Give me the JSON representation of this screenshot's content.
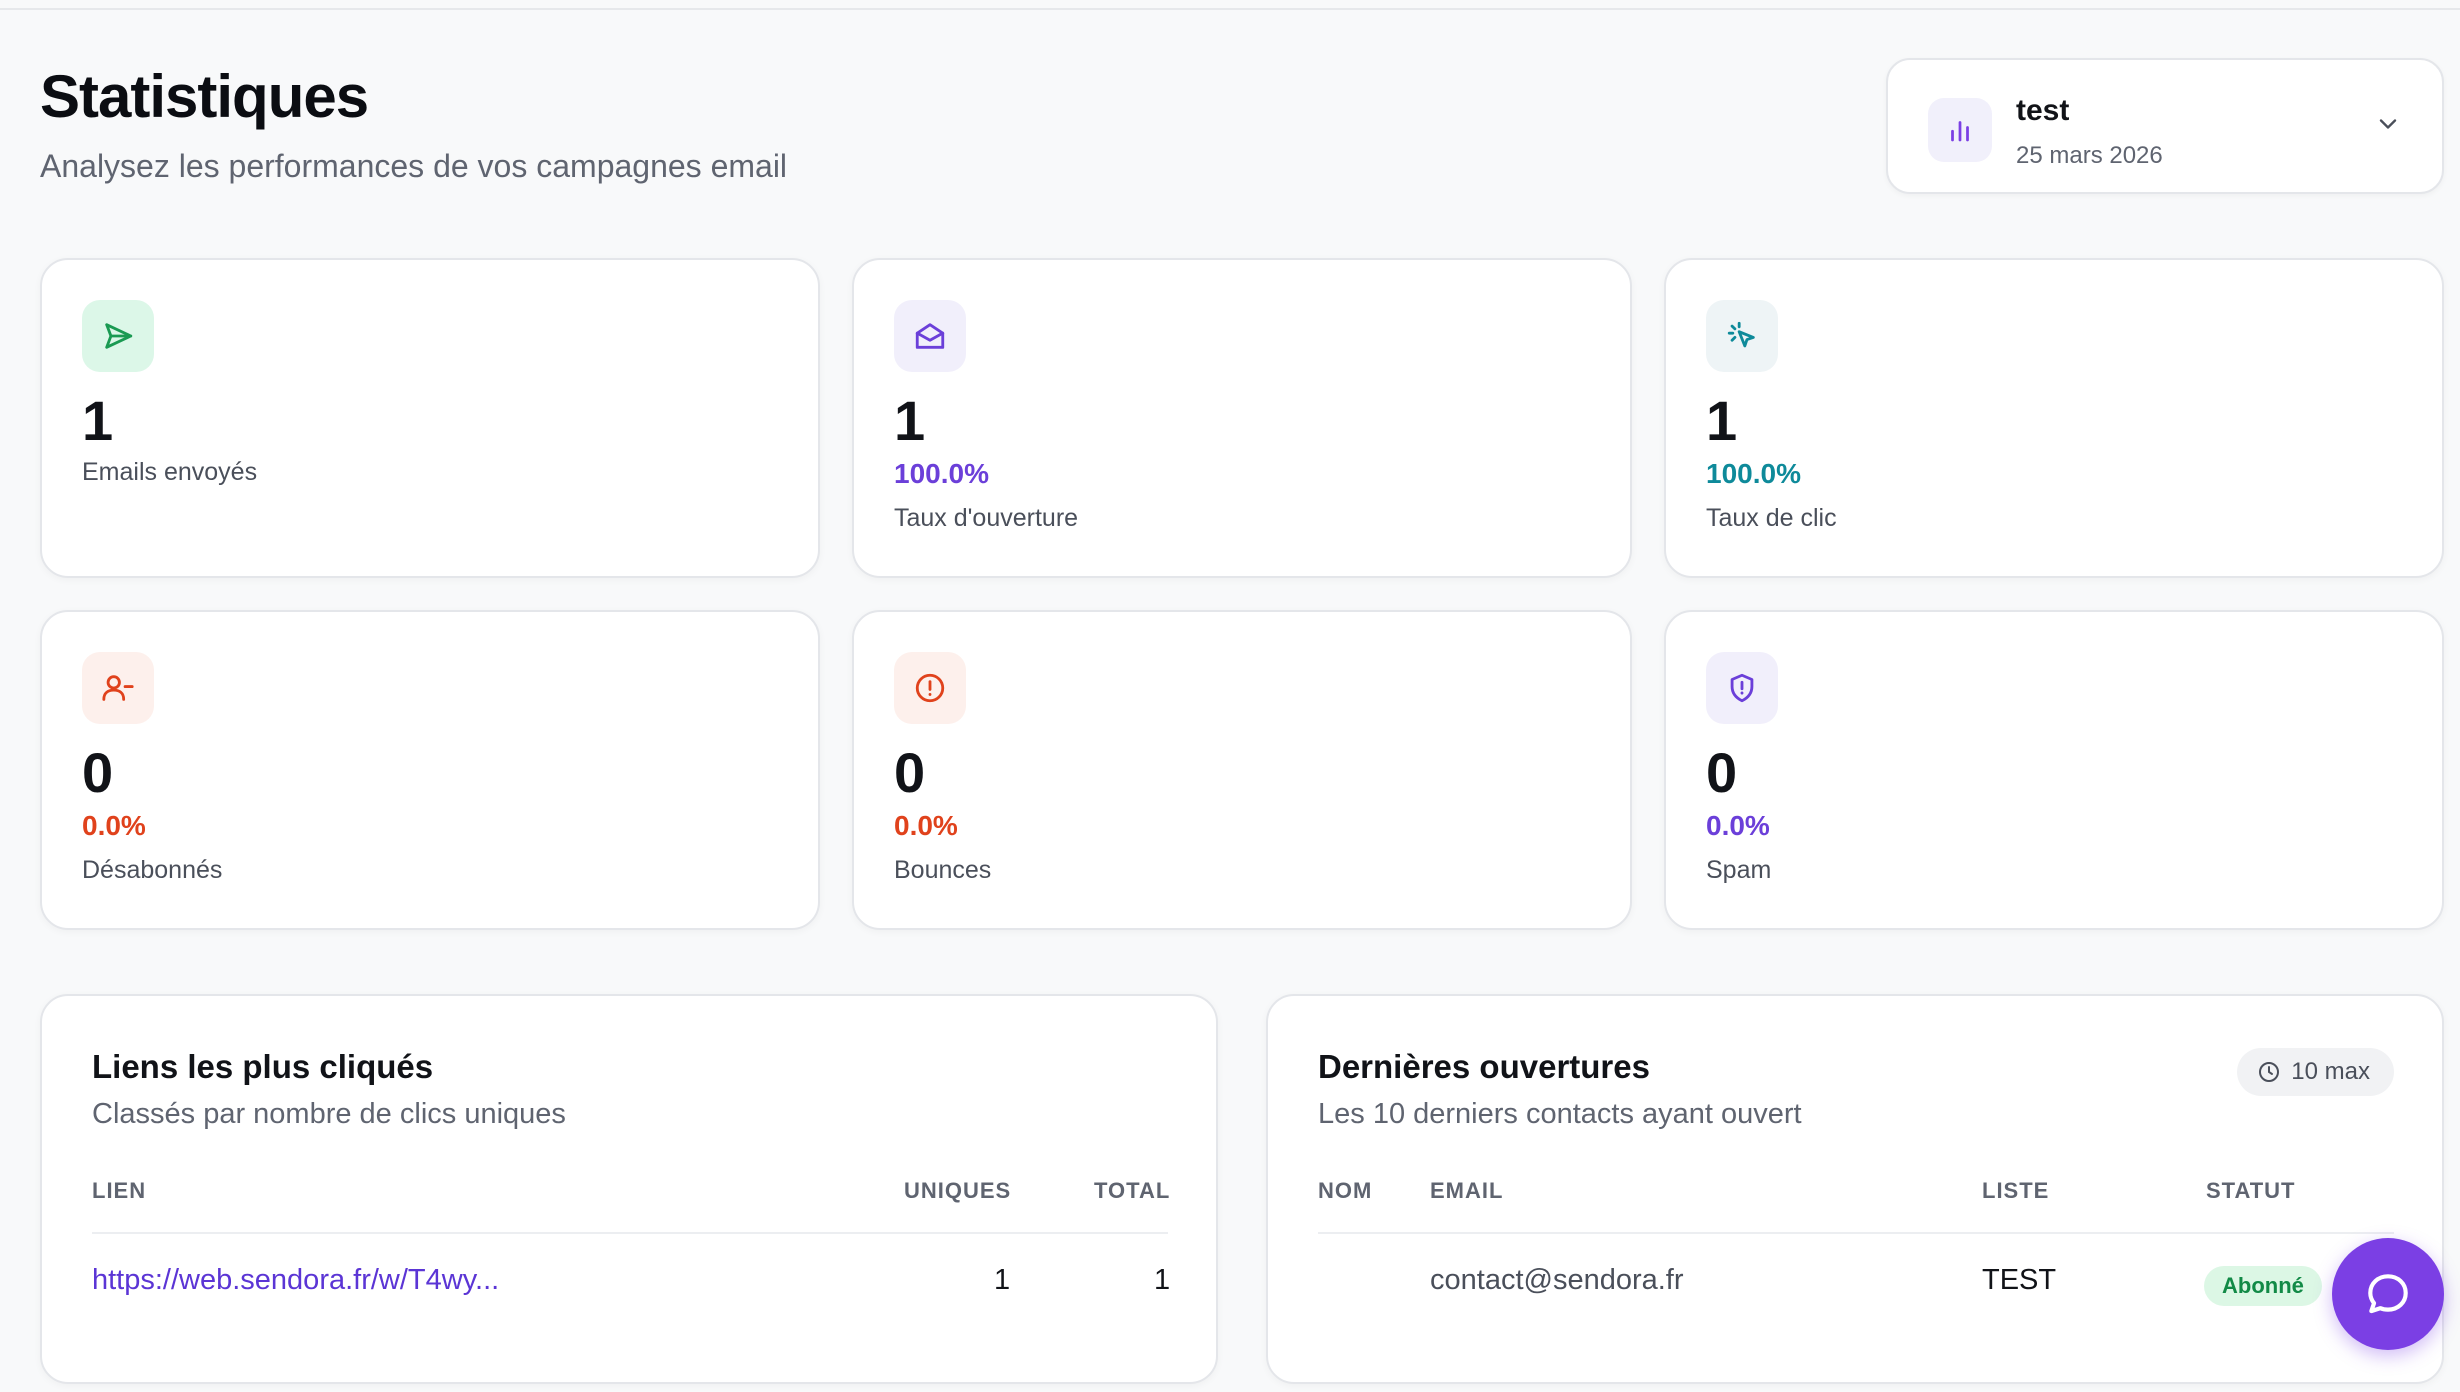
{
  "header": {
    "title": "Statistiques",
    "subtitle": "Analysez les performances de vos campagnes email"
  },
  "campaign_selector": {
    "name": "test",
    "date": "25 mars 2026",
    "icon": "bar-chart-icon"
  },
  "stats": {
    "sent": {
      "value": "1",
      "label": "Emails envoyés",
      "icon": "send-icon",
      "color": "#1a9a52",
      "bg": "#dcf7e8"
    },
    "opens": {
      "value": "1",
      "pct": "100.0%",
      "label": "Taux d'ouverture",
      "icon": "mail-open-icon",
      "color": "#6b3fd9",
      "bg": "#f1effb"
    },
    "clicks": {
      "value": "1",
      "pct": "100.0%",
      "label": "Taux de clic",
      "icon": "cursor-click-icon",
      "color": "#0e8a9a",
      "bg": "#eef4f6"
    },
    "unsubscribes": {
      "value": "0",
      "pct": "0.0%",
      "label": "Désabonnés",
      "icon": "user-minus-icon",
      "color": "#e0421c",
      "bg": "#fdf0ec"
    },
    "bounces": {
      "value": "0",
      "pct": "0.0%",
      "label": "Bounces",
      "icon": "alert-circle-icon",
      "color": "#e0421c",
      "bg": "#fdf0ec"
    },
    "spam": {
      "value": "0",
      "pct": "0.0%",
      "label": "Spam",
      "icon": "shield-alert-icon",
      "color": "#6b3fd9",
      "bg": "#f1effb"
    }
  },
  "top_links": {
    "title": "Liens les plus cliqués",
    "subtitle": "Classés par nombre de clics uniques",
    "columns": {
      "link": "LIEN",
      "unique": "UNIQUES",
      "total": "TOTAL"
    },
    "rows": [
      {
        "link": "https://web.sendora.fr/w/T4wy...",
        "unique": "1",
        "total": "1"
      }
    ]
  },
  "recent_opens": {
    "title": "Dernières ouvertures",
    "subtitle": "Les 10 derniers contacts ayant ouvert",
    "max_badge": "10 max",
    "columns": {
      "name": "NOM",
      "email": "EMAIL",
      "list": "LISTE",
      "status": "STATUT"
    },
    "rows": [
      {
        "name": "",
        "email": "contact@sendora.fr",
        "list": "TEST",
        "status": "Abonné"
      }
    ]
  },
  "colors": {
    "accent": "#7b3fe4",
    "link": "#5b35d5",
    "success": "#128a47"
  }
}
